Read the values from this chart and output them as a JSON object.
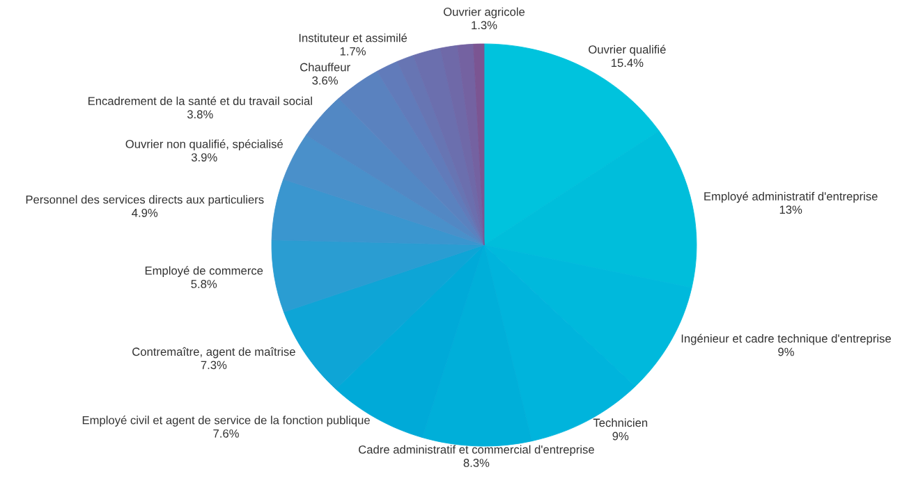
{
  "chart_data": {
    "type": "pie",
    "categories": [
      "Ouvrier qualifié",
      "Employé administratif d'entreprise",
      "Ingénieur et cadre technique d'entreprise",
      "Technicien",
      "Cadre administratif et commercial d'entreprise",
      "Employé civil et agent de service de la fonction publique",
      "Contremaître, agent de maîtrise",
      "Employé de commerce",
      "Personnel des services directs aux particuliers",
      "Ouvrier non qualifié, spécialisé",
      "Encadrement de la santé et du travail social",
      "Chauffeur",
      "Instituteur et assimilé",
      "Ouvrier agricole",
      null,
      null,
      null,
      null
    ],
    "values": [
      15.4,
      13,
      9,
      9,
      8.3,
      7.6,
      7.3,
      5.8,
      4.9,
      3.9,
      3.8,
      3.6,
      1.7,
      1.3,
      2.1,
      1.3,
      1.2,
      0.8
    ],
    "value_labels": [
      "15.4%",
      "13%",
      "9%",
      "9%",
      "8.3%",
      "7.6%",
      "7.3%",
      "5.8%",
      "4.9%",
      "3.9%",
      "3.8%",
      "3.6%",
      "1.7%",
      "1.3%",
      null,
      null,
      null,
      null
    ],
    "colors": [
      "#00c3dd",
      "#00bedb",
      "#00b9dc",
      "#00b4dc",
      "#00afd9",
      "#00aad8",
      "#0ea5d6",
      "#2a9dd2",
      "#3a96cf",
      "#4a90ca",
      "#5288c4",
      "#5a82bf",
      "#617bba",
      "#6775b3",
      "#6b6fae",
      "#6f69a8",
      "#7462a1",
      "#7b5592"
    ]
  }
}
